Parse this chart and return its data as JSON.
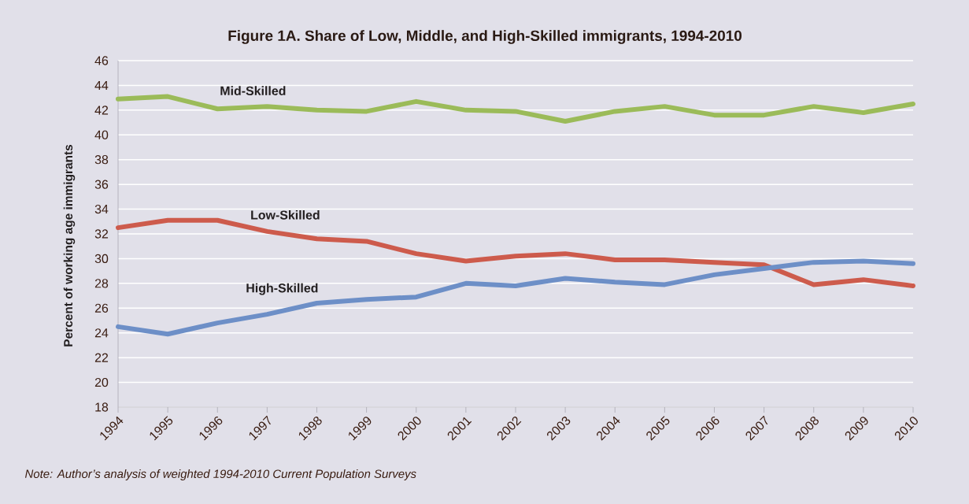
{
  "chart_data": {
    "type": "line",
    "title": "Figure 1A. Share of Low, Middle, and High-Skilled immigrants, 1994-2010",
    "ylabel": "Percent of working age immigrants",
    "annotations": [
      "Note: Author’s analysis of weighted 1994-2010 Current Population Surveys"
    ],
    "x": [
      1994,
      1995,
      1996,
      1997,
      1998,
      1999,
      2000,
      2001,
      2002,
      2003,
      2004,
      2005,
      2006,
      2007,
      2008,
      2009,
      2010
    ],
    "xlim": [
      1994,
      2010
    ],
    "xticks": [
      1994,
      1995,
      1996,
      1997,
      1998,
      1999,
      2000,
      2001,
      2002,
      2003,
      2004,
      2005,
      2006,
      2007,
      2008,
      2009,
      2010
    ],
    "ylim": [
      18,
      46
    ],
    "yticks": [
      18,
      20,
      22,
      24,
      26,
      28,
      30,
      32,
      34,
      36,
      38,
      40,
      42,
      44,
      46
    ],
    "grid": "y",
    "marker": "none",
    "line_style": "solid",
    "series": [
      {
        "name": "Mid-Skilled",
        "color": "#9bbb59",
        "values": [
          42.9,
          43.1,
          42.1,
          42.3,
          42.0,
          41.9,
          42.7,
          42.0,
          41.9,
          41.1,
          41.9,
          42.3,
          41.6,
          41.6,
          42.3,
          41.8,
          42.5
        ]
      },
      {
        "name": "Low-Skilled",
        "color": "#cd5b4c",
        "values": [
          32.5,
          33.1,
          33.1,
          32.2,
          31.6,
          31.4,
          30.4,
          29.8,
          30.2,
          30.4,
          29.9,
          29.9,
          29.7,
          29.5,
          27.9,
          28.3,
          27.8
        ]
      },
      {
        "name": "High-Skilled",
        "color": "#6d8fc7",
        "values": [
          24.5,
          23.9,
          24.8,
          25.5,
          26.4,
          26.7,
          26.9,
          28.0,
          27.8,
          28.4,
          28.1,
          27.9,
          28.7,
          29.2,
          29.7,
          29.8,
          29.6
        ]
      }
    ]
  }
}
